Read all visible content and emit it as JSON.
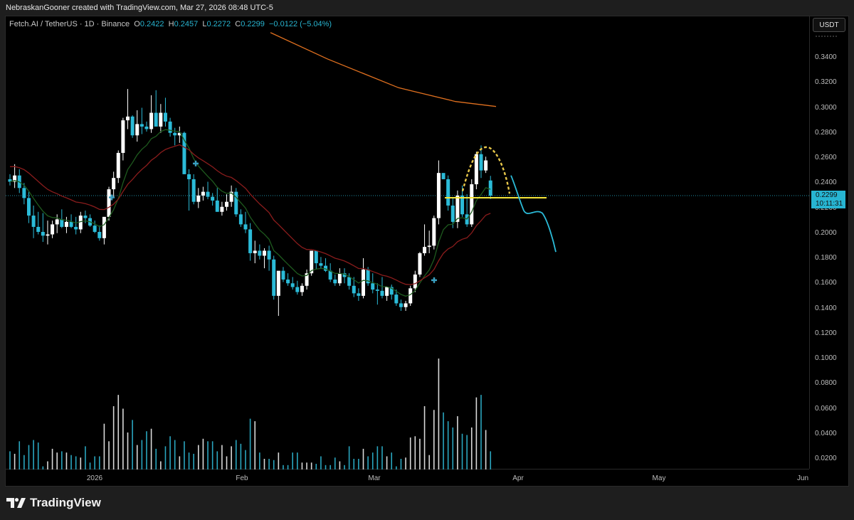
{
  "header": {
    "attribution": "NebraskanGooner created with TradingView.com, Mar 27, 2026 08:48 UTC-5"
  },
  "legend": {
    "symbol": "Fetch.AI / TetherUS · 1D · Binance",
    "open_label": "O",
    "open": "0.2422",
    "high_label": "H",
    "high": "0.2457",
    "low_label": "L",
    "low": "0.2272",
    "close_label": "C",
    "close": "0.2299",
    "change": "−0.0122 (−5.04%)"
  },
  "price_axis": {
    "currency_button": "USDT",
    "ticks": [
      "0.3400",
      "0.3200",
      "0.3000",
      "0.2800",
      "0.2600",
      "0.2400",
      "0.2200",
      "0.2000",
      "0.1800",
      "0.1600",
      "0.1400",
      "0.1200",
      "0.1000",
      "0.0800",
      "0.0600",
      "0.0400",
      "0.0200"
    ],
    "last_price": "0.2299",
    "countdown": "10:11:31"
  },
  "time_axis": {
    "ticks": [
      "2026",
      "Feb",
      "Mar",
      "Apr",
      "May",
      "Jun"
    ]
  },
  "footer": {
    "brand": "TradingView"
  },
  "colors": {
    "up": "#ffffff",
    "down": "#2bbbd8",
    "ema_short": "#1e5a1e",
    "ema_mid": "#8a1c1c",
    "ema_long": "#e0701f",
    "support_line": "#f5e63a",
    "arc_dashed": "#e8c84a",
    "projection": "#2bbbd8",
    "last_price_line": "#27b5d2"
  },
  "chart_data": {
    "type": "candlestick",
    "title": "Fetch.AI / TetherUS · 1D · Binance",
    "ylabel": "USDT",
    "ylim": [
      0.0,
      0.355
    ],
    "x_ticks": [
      "2026",
      "Feb",
      "Mar",
      "Apr",
      "May",
      "Jun"
    ],
    "last": {
      "open": 0.2422,
      "high": 0.2457,
      "low": 0.2272,
      "close": 0.2299,
      "change": -0.0122,
      "change_pct": -5.04
    },
    "candles": [
      [
        0.243,
        0.247,
        0.238,
        0.241
      ],
      [
        0.241,
        0.255,
        0.236,
        0.246
      ],
      [
        0.246,
        0.251,
        0.232,
        0.236
      ],
      [
        0.236,
        0.24,
        0.223,
        0.228
      ],
      [
        0.228,
        0.233,
        0.208,
        0.214
      ],
      [
        0.214,
        0.222,
        0.196,
        0.205
      ],
      [
        0.205,
        0.217,
        0.199,
        0.201
      ],
      [
        0.201,
        0.216,
        0.193,
        0.198
      ],
      [
        0.198,
        0.21,
        0.191,
        0.199
      ],
      [
        0.199,
        0.21,
        0.196,
        0.207
      ],
      [
        0.207,
        0.215,
        0.2,
        0.211
      ],
      [
        0.211,
        0.219,
        0.204,
        0.205
      ],
      [
        0.205,
        0.213,
        0.2,
        0.209
      ],
      [
        0.209,
        0.215,
        0.204,
        0.205
      ],
      [
        0.205,
        0.213,
        0.199,
        0.203
      ],
      [
        0.203,
        0.217,
        0.2,
        0.214
      ],
      [
        0.214,
        0.218,
        0.208,
        0.212
      ],
      [
        0.212,
        0.215,
        0.205,
        0.206
      ],
      [
        0.206,
        0.21,
        0.2,
        0.201
      ],
      [
        0.201,
        0.206,
        0.194,
        0.196
      ],
      [
        0.196,
        0.212,
        0.191,
        0.213
      ],
      [
        0.213,
        0.237,
        0.21,
        0.235
      ],
      [
        0.235,
        0.249,
        0.228,
        0.244
      ],
      [
        0.244,
        0.266,
        0.24,
        0.264
      ],
      [
        0.264,
        0.292,
        0.258,
        0.29
      ],
      [
        0.29,
        0.315,
        0.283,
        0.293
      ],
      [
        0.293,
        0.294,
        0.276,
        0.278
      ],
      [
        0.278,
        0.298,
        0.273,
        0.287
      ],
      [
        0.287,
        0.3,
        0.279,
        0.285
      ],
      [
        0.285,
        0.289,
        0.281,
        0.283
      ],
      [
        0.283,
        0.31,
        0.28,
        0.296
      ],
      [
        0.296,
        0.314,
        0.289,
        0.285
      ],
      [
        0.285,
        0.303,
        0.28,
        0.296
      ],
      [
        0.296,
        0.308,
        0.285,
        0.289
      ],
      [
        0.289,
        0.292,
        0.277,
        0.28
      ],
      [
        0.28,
        0.284,
        0.27,
        0.278
      ],
      [
        0.278,
        0.285,
        0.272,
        0.28
      ],
      [
        0.28,
        0.281,
        0.248,
        0.247
      ],
      [
        0.247,
        0.251,
        0.218,
        0.243
      ],
      [
        0.243,
        0.247,
        0.223,
        0.225
      ],
      [
        0.225,
        0.236,
        0.22,
        0.23
      ],
      [
        0.23,
        0.237,
        0.226,
        0.233
      ],
      [
        0.233,
        0.241,
        0.227,
        0.229
      ],
      [
        0.229,
        0.232,
        0.222,
        0.226
      ],
      [
        0.226,
        0.236,
        0.217,
        0.217
      ],
      [
        0.217,
        0.225,
        0.214,
        0.221
      ],
      [
        0.221,
        0.231,
        0.218,
        0.225
      ],
      [
        0.225,
        0.238,
        0.221,
        0.233
      ],
      [
        0.233,
        0.236,
        0.213,
        0.215
      ],
      [
        0.215,
        0.219,
        0.205,
        0.207
      ],
      [
        0.207,
        0.217,
        0.2,
        0.203
      ],
      [
        0.203,
        0.208,
        0.178,
        0.184
      ],
      [
        0.184,
        0.194,
        0.176,
        0.186
      ],
      [
        0.186,
        0.191,
        0.179,
        0.182
      ],
      [
        0.182,
        0.188,
        0.172,
        0.186
      ],
      [
        0.186,
        0.19,
        0.17,
        0.179
      ],
      [
        0.179,
        0.182,
        0.147,
        0.15
      ],
      [
        0.15,
        0.162,
        0.134,
        0.17
      ],
      [
        0.17,
        0.173,
        0.161,
        0.163
      ],
      [
        0.163,
        0.168,
        0.158,
        0.16
      ],
      [
        0.16,
        0.165,
        0.155,
        0.157
      ],
      [
        0.157,
        0.162,
        0.151,
        0.153
      ],
      [
        0.153,
        0.16,
        0.15,
        0.158
      ],
      [
        0.158,
        0.171,
        0.155,
        0.168
      ],
      [
        0.168,
        0.183,
        0.166,
        0.186
      ],
      [
        0.186,
        0.186,
        0.171,
        0.176
      ],
      [
        0.176,
        0.181,
        0.172,
        0.174
      ],
      [
        0.174,
        0.18,
        0.169,
        0.17
      ],
      [
        0.17,
        0.176,
        0.161,
        0.163
      ],
      [
        0.163,
        0.167,
        0.158,
        0.16
      ],
      [
        0.16,
        0.172,
        0.158,
        0.168
      ],
      [
        0.168,
        0.172,
        0.16,
        0.165
      ],
      [
        0.165,
        0.168,
        0.155,
        0.158
      ],
      [
        0.158,
        0.165,
        0.149,
        0.152
      ],
      [
        0.152,
        0.156,
        0.146,
        0.15
      ],
      [
        0.15,
        0.18,
        0.148,
        0.171
      ],
      [
        0.171,
        0.173,
        0.158,
        0.16
      ],
      [
        0.16,
        0.168,
        0.152,
        0.155
      ],
      [
        0.155,
        0.16,
        0.143,
        0.154
      ],
      [
        0.154,
        0.165,
        0.148,
        0.15
      ],
      [
        0.15,
        0.157,
        0.146,
        0.157
      ],
      [
        0.157,
        0.159,
        0.147,
        0.151
      ],
      [
        0.151,
        0.155,
        0.142,
        0.144
      ],
      [
        0.144,
        0.147,
        0.138,
        0.141
      ],
      [
        0.141,
        0.146,
        0.138,
        0.144
      ],
      [
        0.144,
        0.158,
        0.142,
        0.156
      ],
      [
        0.156,
        0.17,
        0.153,
        0.167
      ],
      [
        0.167,
        0.185,
        0.165,
        0.184
      ],
      [
        0.184,
        0.207,
        0.182,
        0.189
      ],
      [
        0.189,
        0.202,
        0.184,
        0.19
      ],
      [
        0.19,
        0.214,
        0.187,
        0.212
      ],
      [
        0.212,
        0.258,
        0.207,
        0.248
      ],
      [
        0.248,
        0.24,
        0.24,
        0.243
      ],
      [
        0.243,
        0.246,
        0.218,
        0.222
      ],
      [
        0.222,
        0.228,
        0.204,
        0.209
      ],
      [
        0.209,
        0.234,
        0.204,
        0.23
      ],
      [
        0.23,
        0.238,
        0.213,
        0.215
      ],
      [
        0.215,
        0.231,
        0.205,
        0.207
      ],
      [
        0.207,
        0.243,
        0.205,
        0.239
      ],
      [
        0.239,
        0.265,
        0.235,
        0.263
      ],
      [
        0.263,
        0.27,
        0.244,
        0.25
      ],
      [
        0.25,
        0.261,
        0.248,
        0.258
      ],
      [
        0.242,
        0.2457,
        0.2272,
        0.2299
      ]
    ],
    "indicators": [
      {
        "name": "EMA short (green)",
        "color": "#1e5a1e"
      },
      {
        "name": "EMA mid (red)",
        "color": "#8a1c1c"
      },
      {
        "name": "EMA long (orange)",
        "color": "#e0701f",
        "points": [
          [
            0.36,
            380
          ],
          [
            0.339,
            460
          ],
          [
            0.316,
            560
          ],
          [
            0.305,
            640
          ],
          [
            0.301,
            697
          ]
        ]
      }
    ],
    "annotations": [
      {
        "type": "horizontal_line",
        "price": 0.2282,
        "color": "#f5e63a",
        "x_from": "mid-Mar",
        "x_to": "early-Apr"
      },
      {
        "type": "dashed_arc",
        "label": "rounded top",
        "color": "#e8c84a"
      },
      {
        "type": "projection_path",
        "color": "#2bbbd8",
        "from": 0.246,
        "to": 0.185
      },
      {
        "type": "cross_markers",
        "count": 3
      }
    ],
    "volume": {
      "ylim": [
        0,
        0.105
      ],
      "note": "volume histogram on shared right axis scale"
    }
  }
}
